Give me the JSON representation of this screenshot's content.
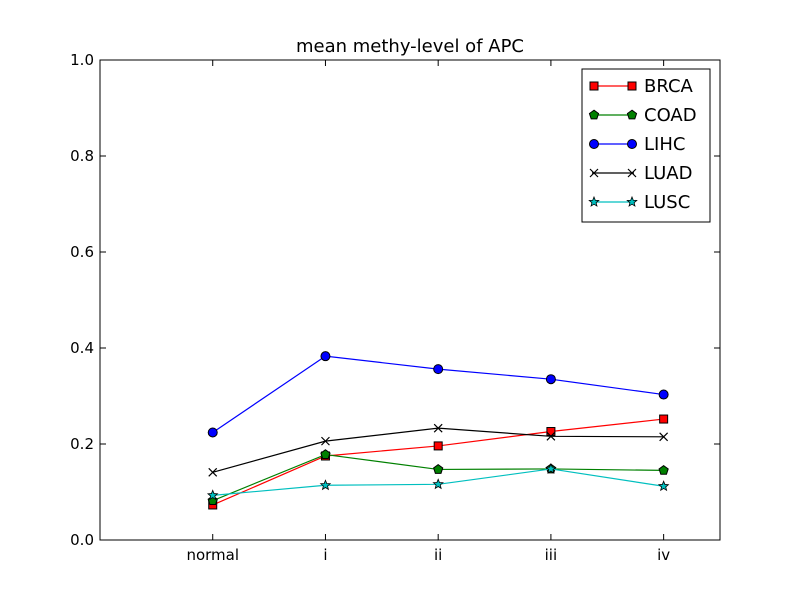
{
  "chart_data": {
    "type": "line",
    "title": "mean methy-level of APC",
    "xlabel": "",
    "ylabel": "",
    "categories": [
      "normal",
      "i",
      "ii",
      "iii",
      "iv"
    ],
    "xlim": [
      -1,
      4.5
    ],
    "ylim": [
      0.0,
      1.0
    ],
    "yticks": [
      "0.0",
      "0.2",
      "0.4",
      "0.6",
      "0.8",
      "1.0"
    ],
    "grid": false,
    "legend_position": "top-right",
    "series": [
      {
        "name": "BRCA",
        "color": "#ff0000",
        "marker": "square",
        "values": [
          0.073,
          0.175,
          0.196,
          0.226,
          0.252
        ]
      },
      {
        "name": "COAD",
        "color": "#008000",
        "marker": "pentagon",
        "values": [
          0.082,
          0.178,
          0.147,
          0.148,
          0.145
        ]
      },
      {
        "name": "LIHC",
        "color": "#0000ff",
        "marker": "circle",
        "values": [
          0.224,
          0.383,
          0.356,
          0.335,
          0.303
        ]
      },
      {
        "name": "LUAD",
        "color": "#000000",
        "marker": "x",
        "values": [
          0.141,
          0.206,
          0.233,
          0.216,
          0.215
        ]
      },
      {
        "name": "LUSC",
        "color": "#00bfbf",
        "marker": "star",
        "values": [
          0.093,
          0.114,
          0.116,
          0.148,
          0.112
        ]
      }
    ]
  }
}
